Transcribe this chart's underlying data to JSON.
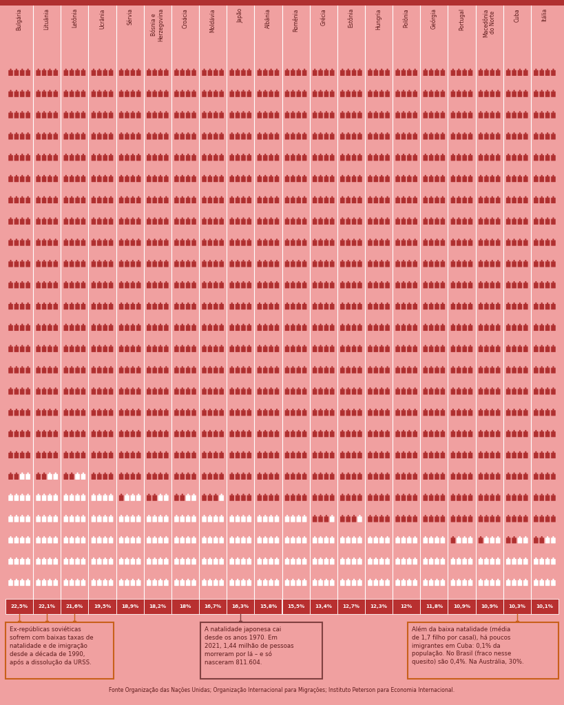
{
  "background_color": "#f0a0a0",
  "top_bar_color": "#b03030",
  "figure_color": "#b03030",
  "light_figure_color": "#ffffff",
  "col_bg_dark": "#c84040",
  "countries": [
    "Bulgária",
    "Lituânia",
    "Letônia",
    "Ucrânia",
    "Sérvia",
    "Bósnia e\nHerzegovina",
    "Croácia",
    "Moldávia",
    "Japão",
    "Albânia",
    "Romênia",
    "Grécia",
    "Estônia",
    "Hungria",
    "Polônia",
    "Geórgia",
    "Portugal",
    "Macedônia\ndo Norte",
    "Cuba",
    "Itália"
  ],
  "percentages": [
    22.5,
    22.1,
    21.6,
    19.5,
    18.9,
    18.2,
    18.0,
    16.7,
    16.3,
    15.8,
    15.5,
    13.4,
    12.7,
    12.3,
    12.0,
    11.8,
    10.9,
    10.9,
    10.3,
    10.1
  ],
  "pct_labels": [
    "22,5%",
    "22,1%",
    "21,6%",
    "19,5%",
    "18,9%",
    "18,2%",
    "18%",
    "16,7%",
    "16,3%",
    "15,8%",
    "15,5%",
    "13,4%",
    "12,7%",
    "12,3%",
    "12%",
    "11,8%",
    "10,9%",
    "10,9%",
    "10,3%",
    "10,1%"
  ],
  "note1": "Ex-repúblicas soviéticas\nsofrem com baixas taxas de\nnatalidade e de imigração\ndesde a década de 1990,\napós a dissolução da URSS.",
  "note1_connector_cols": [
    0,
    1,
    2
  ],
  "note2": "A natalidade japonesa cai\ndesde os anos 1970. Em\n2021, 1,44 milhão de pessoas\nmorreram por lá – e só\nnasceram 811.604.",
  "note2_connector_cols": [
    8
  ],
  "note3": "Além da baixa natalidade (média\nde 1,7 filho por casal), há poucos\nimigrantes em Cuba: 0,1% da\npopulação. No Brasil (fraco nesse\nquesito) são 0,4%. Na Austrália, 30%.",
  "note3_connector_cols": [
    18
  ],
  "fonte_text": "Fonte Organização das Nações Unidas; Organização Internacional para Migrações; Instituto Peterson para Economia Internacional.",
  "total_figures": 100,
  "figures_per_row": 4
}
